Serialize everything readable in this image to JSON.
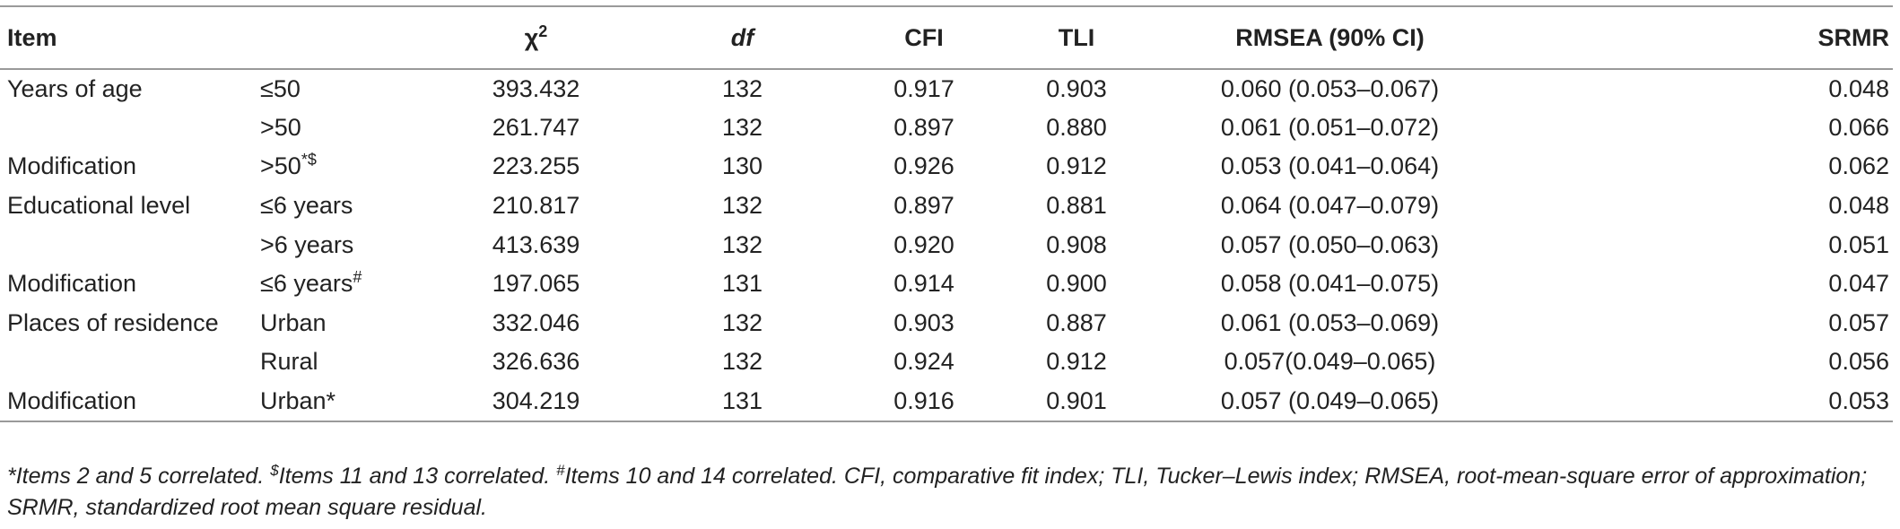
{
  "table": {
    "headers": {
      "item": "Item",
      "group": "",
      "chi2_symbol": "χ",
      "chi2_sup": "2",
      "df": "df",
      "cfi": "CFI",
      "tli": "TLI",
      "rmsea": "RMSEA (90% CI)",
      "srmr": "SRMR"
    },
    "rows": [
      {
        "item": "Years of age",
        "group": "≤50",
        "group_sup": "",
        "chi2": "393.432",
        "df": "132",
        "cfi": "0.917",
        "tli": "0.903",
        "rmsea": "0.060 (0.053–0.067)",
        "srmr": "0.048"
      },
      {
        "item": "",
        "group": ">50",
        "group_sup": "",
        "chi2": "261.747",
        "df": "132",
        "cfi": "0.897",
        "tli": "0.880",
        "rmsea": "0.061 (0.051–0.072)",
        "srmr": "0.066"
      },
      {
        "item": "Modification",
        "group": ">50",
        "group_sup": "*$",
        "chi2": "223.255",
        "df": "130",
        "cfi": "0.926",
        "tli": "0.912",
        "rmsea": "0.053 (0.041–0.064)",
        "srmr": "0.062"
      },
      {
        "item": "Educational level",
        "group": "≤6 years",
        "group_sup": "",
        "chi2": "210.817",
        "df": "132",
        "cfi": "0.897",
        "tli": "0.881",
        "rmsea": "0.064 (0.047–0.079)",
        "srmr": "0.048"
      },
      {
        "item": "",
        "group": ">6 years",
        "group_sup": "",
        "chi2": "413.639",
        "df": "132",
        "cfi": "0.920",
        "tli": "0.908",
        "rmsea": "0.057 (0.050–0.063)",
        "srmr": "0.051"
      },
      {
        "item": "Modification",
        "group": "≤6 years",
        "group_sup": "#",
        "chi2": "197.065",
        "df": "131",
        "cfi": "0.914",
        "tli": "0.900",
        "rmsea": "0.058 (0.041–0.075)",
        "srmr": "0.047"
      },
      {
        "item": "Places of residence",
        "group": "Urban",
        "group_sup": "",
        "chi2": "332.046",
        "df": "132",
        "cfi": "0.903",
        "tli": "0.887",
        "rmsea": "0.061 (0.053–0.069)",
        "srmr": "0.057"
      },
      {
        "item": "",
        "group": "Rural",
        "group_sup": "",
        "chi2": "326.636",
        "df": "132",
        "cfi": "0.924",
        "tli": "0.912",
        "rmsea": "0.057(0.049–0.065)",
        "srmr": "0.056"
      },
      {
        "item": "Modification",
        "group": "Urban*",
        "group_sup": "",
        "chi2": "304.219",
        "df": "131",
        "cfi": "0.916",
        "tli": "0.901",
        "rmsea": "0.057 (0.049–0.065)",
        "srmr": "0.053"
      }
    ]
  },
  "footnote": {
    "part1": "*Items 2 and 5 correlated. ",
    "sup_dollar": "$",
    "part2": "Items 11 and 13 correlated. ",
    "sup_hash": "#",
    "part3": "Items 10 and 14 correlated. CFI, comparative fit index; TLI, Tucker–Lewis index; RMSEA, root-mean-square error of approximation; SRMR, standardized root mean square residual."
  }
}
